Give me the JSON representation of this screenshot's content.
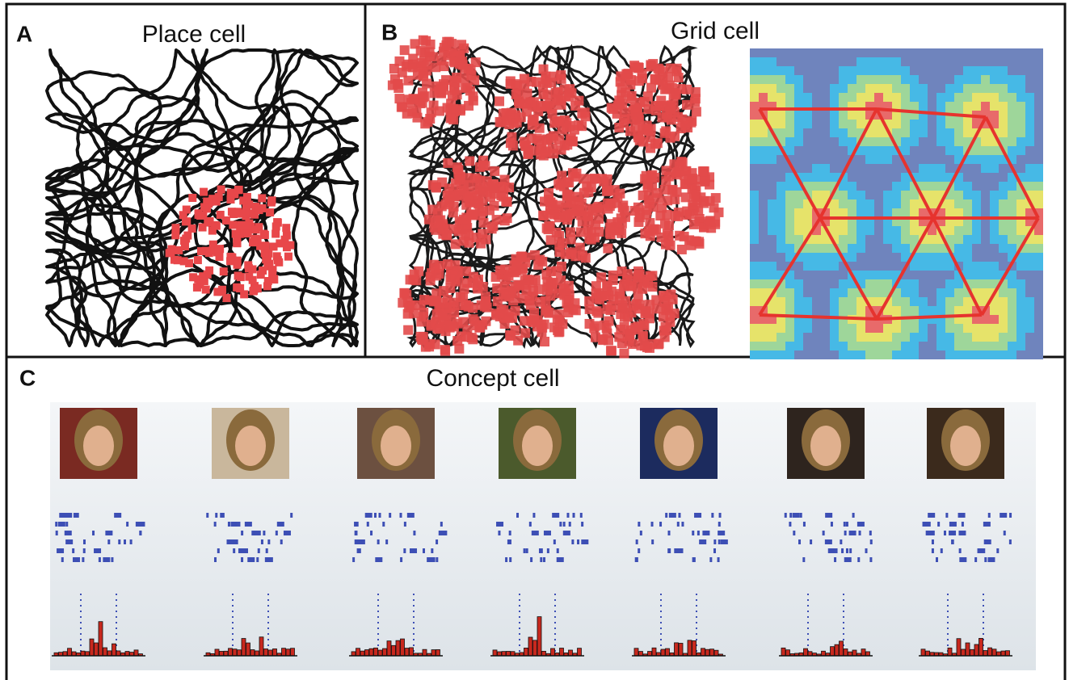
{
  "panels": {
    "a": {
      "label": "A",
      "title": "Place cell"
    },
    "b": {
      "label": "B",
      "title": "Grid cell"
    },
    "c": {
      "label": "C",
      "title": "Concept cell"
    }
  }
}
